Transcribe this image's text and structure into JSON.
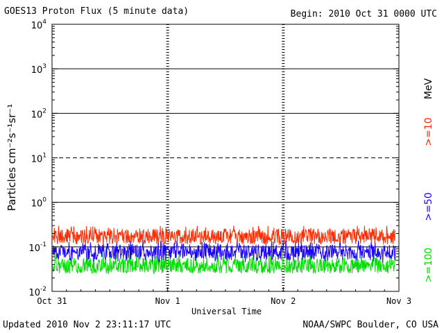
{
  "header": {
    "title": "GOES13 Proton Flux (5 minute data)",
    "begin": "Begin: 2010 Oct 31 0000 UTC"
  },
  "footer": {
    "updated": "Updated 2010 Nov  2 23:11:17 UTC",
    "credit": "NOAA/SWPC Boulder, CO USA"
  },
  "chart_data": {
    "type": "line",
    "title": "GOES13 Proton Flux (5 minute data)",
    "xlabel": "Universal Time",
    "ylabel": "Particles cm⁻²s⁻¹sr⁻¹",
    "y_scale": "log",
    "ylim": [
      0.01,
      10000
    ],
    "y_ticks": [
      {
        "value": 0.01,
        "base": "10",
        "exp": "-2"
      },
      {
        "value": 0.1,
        "base": "10",
        "exp": "-1"
      },
      {
        "value": 1,
        "base": "10",
        "exp": "0"
      },
      {
        "value": 10,
        "base": "10",
        "exp": "1"
      },
      {
        "value": 100,
        "base": "10",
        "exp": "2"
      },
      {
        "value": 1000,
        "base": "10",
        "exp": "3"
      },
      {
        "value": 10000,
        "base": "10",
        "exp": "4"
      }
    ],
    "x_ticks": [
      "Oct 31",
      "Nov 1",
      "Nov 2",
      "Nov 3"
    ],
    "xlim": [
      "2010-10-31 00:00",
      "2010-11-03 00:00"
    ],
    "reference_lines": [
      {
        "value": 10,
        "style": "dashed"
      },
      {
        "value": 1000,
        "style": "solid"
      },
      {
        "value": 100,
        "style": "solid"
      },
      {
        "value": 1,
        "style": "solid"
      },
      {
        "value": 0.1,
        "style": "solid"
      }
    ],
    "unit_label": "MeV",
    "series": [
      {
        "name": ">=10",
        "color": "#ff2a00",
        "baseline": 0.17,
        "low": 0.11,
        "high": 0.3
      },
      {
        "name": ">=50",
        "color": "#1a00ff",
        "baseline": 0.075,
        "low": 0.045,
        "high": 0.14
      },
      {
        "name": ">=100",
        "color": "#00e000",
        "baseline": 0.038,
        "low": 0.025,
        "high": 0.075
      }
    ]
  }
}
